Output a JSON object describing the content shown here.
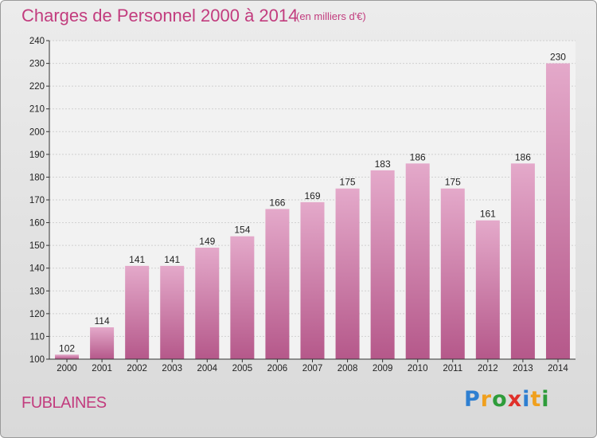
{
  "header": {
    "title": "Charges de Personnel 2000 à 2014",
    "subtitle": "(en milliers d'€)"
  },
  "commune": "FUBLAINES",
  "logo": {
    "text": "Proxiti",
    "letters": [
      {
        "char": "P",
        "color": "#2e7fd1"
      },
      {
        "char": "r",
        "color": "#f0a01e"
      },
      {
        "char": "o",
        "color": "#2e9c3a"
      },
      {
        "char": "x",
        "color": "#e0302a"
      },
      {
        "char": "i",
        "color": "#2e7fd1"
      },
      {
        "char": "t",
        "color": "#f0a01e"
      },
      {
        "char": "i",
        "color": "#2e9c3a"
      }
    ]
  },
  "colors": {
    "accent": "#c23c7e",
    "bar_top": "#e4a9ca",
    "bar_bottom": "#b5588a"
  },
  "chart_data": {
    "type": "bar",
    "title": "Charges de Personnel 2000 à 2014",
    "subtitle": "(en milliers d'€)",
    "categories": [
      "2000",
      "2001",
      "2002",
      "2003",
      "2004",
      "2005",
      "2006",
      "2007",
      "2008",
      "2009",
      "2010",
      "2011",
      "2012",
      "2013",
      "2014"
    ],
    "values": [
      102,
      114,
      141,
      141,
      149,
      154,
      166,
      169,
      175,
      183,
      186,
      175,
      161,
      186,
      230
    ],
    "ylim": [
      100,
      240
    ],
    "yticks": [
      100,
      110,
      120,
      130,
      140,
      150,
      160,
      170,
      180,
      190,
      200,
      210,
      220,
      230,
      240
    ],
    "grid": true,
    "data_labels": true
  }
}
